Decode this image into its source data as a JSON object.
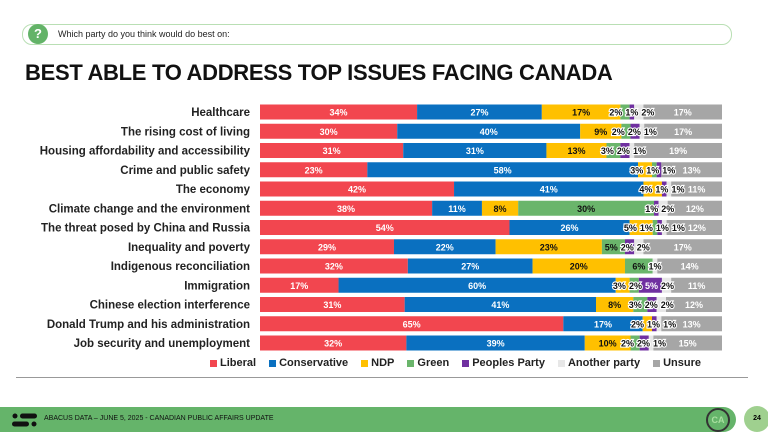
{
  "question": "Which party do you think would do best on:",
  "title": "BEST ABLE TO ADDRESS TOP ISSUES FACING CANADA",
  "footer": {
    "text": "ABACUS DATA – JUNE 5, 2025 - CANADIAN PUBLIC AFFAIRS UPDATE",
    "badge": "CA",
    "page": "24"
  },
  "chart_data": {
    "type": "bar",
    "orientation": "horizontal-stacked-100",
    "legend_position": "bottom",
    "grid": false,
    "categories": [
      "Healthcare",
      "The rising cost of living",
      "Housing affordability and accessibility",
      "Crime and public safety",
      "The economy",
      "Climate change and the environment",
      "The threat posed by China and Russia",
      "Inequality and poverty",
      "Indigenous reconciliation",
      "Immigration",
      "Chinese election interference",
      "Donald Trump and his administration",
      "Job security and unemployment"
    ],
    "series": [
      {
        "name": "Liberal",
        "color": "#f2464f",
        "values": [
          34,
          30,
          31,
          23,
          42,
          38,
          54,
          29,
          32,
          17,
          31,
          65,
          32
        ]
      },
      {
        "name": "Conservative",
        "color": "#0a70c0",
        "values": [
          27,
          40,
          31,
          58,
          41,
          11,
          26,
          22,
          27,
          60,
          41,
          17,
          39
        ]
      },
      {
        "name": "NDP",
        "color": "#ffc000",
        "values": [
          17,
          9,
          13,
          3,
          4,
          8,
          5,
          23,
          20,
          3,
          8,
          2,
          10
        ]
      },
      {
        "name": "Green",
        "color": "#6ab56b",
        "values": [
          2,
          2,
          3,
          1,
          0,
          30,
          1,
          5,
          6,
          2,
          3,
          0,
          2
        ]
      },
      {
        "name": "Peoples Party",
        "color": "#7030a0",
        "values": [
          1,
          2,
          2,
          1,
          1,
          1,
          1,
          2,
          0,
          5,
          2,
          1,
          2
        ]
      },
      {
        "name": "Another party",
        "color": "#e7e7e7",
        "values": [
          2,
          1,
          1,
          0,
          1,
          2,
          1,
          2,
          1,
          2,
          2,
          1,
          1
        ]
      },
      {
        "name": "Unsure",
        "color": "#a6a6a6",
        "values": [
          17,
          17,
          19,
          13,
          11,
          12,
          12,
          17,
          14,
          11,
          12,
          13,
          15
        ]
      }
    ]
  }
}
